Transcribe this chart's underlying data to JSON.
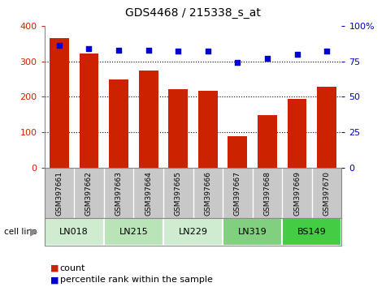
{
  "title": "GDS4468 / 215338_s_at",
  "samples": [
    "GSM397661",
    "GSM397662",
    "GSM397663",
    "GSM397664",
    "GSM397665",
    "GSM397666",
    "GSM397667",
    "GSM397668",
    "GSM397669",
    "GSM397670"
  ],
  "counts": [
    365,
    322,
    248,
    273,
    222,
    218,
    90,
    148,
    194,
    228
  ],
  "percentiles": [
    86,
    84,
    83,
    83,
    82,
    82,
    74,
    77,
    80,
    82
  ],
  "cell_lines": [
    {
      "label": "LN018",
      "start": 0,
      "end": 2,
      "color": "#d0ecd0"
    },
    {
      "label": "LN215",
      "start": 2,
      "end": 4,
      "color": "#b8e4b8"
    },
    {
      "label": "LN229",
      "start": 4,
      "end": 6,
      "color": "#d0ecd0"
    },
    {
      "label": "LN319",
      "start": 6,
      "end": 8,
      "color": "#80d080"
    },
    {
      "label": "BS149",
      "start": 8,
      "end": 10,
      "color": "#44cc44"
    }
  ],
  "bar_color": "#cc2200",
  "dot_color": "#0000cc",
  "left_axis_color": "#cc2200",
  "right_axis_color": "#0000cc",
  "ylim_left": [
    0,
    400
  ],
  "ylim_right": [
    0,
    100
  ],
  "yticks_left": [
    0,
    100,
    200,
    300,
    400
  ],
  "yticks_right": [
    0,
    25,
    50,
    75,
    100
  ],
  "background_color": "#ffffff",
  "xlabel_area_color": "#c8c8c8",
  "legend_count_label": "count",
  "legend_pct_label": "percentile rank within the sample"
}
